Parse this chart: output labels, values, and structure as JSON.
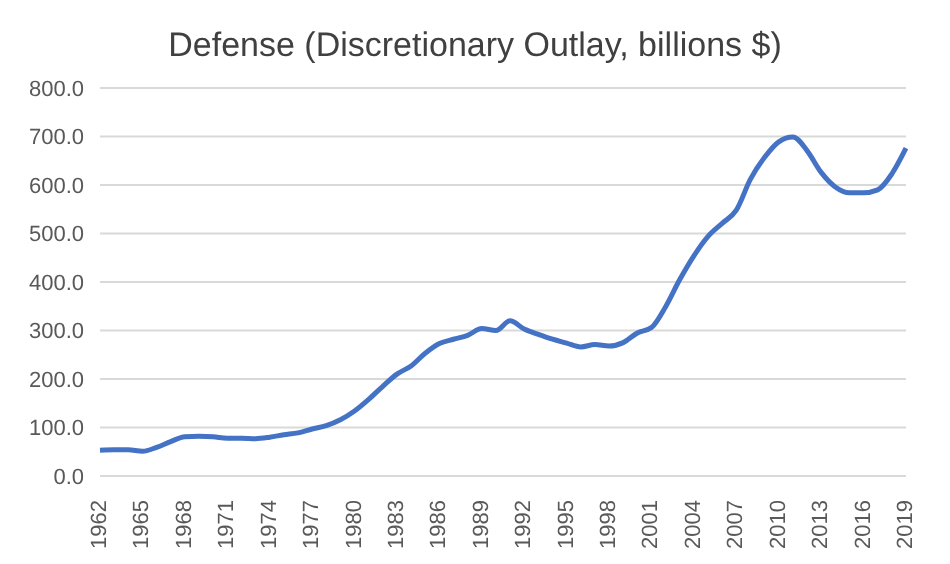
{
  "chart_data": {
    "type": "line",
    "title": "Defense (Discretionary Outlay, billions $)",
    "categories": [
      "1962",
      null,
      null,
      "1965",
      null,
      null,
      "1968",
      null,
      null,
      "1971",
      null,
      null,
      "1974",
      null,
      null,
      "1977",
      null,
      null,
      "1980",
      null,
      null,
      "1983",
      null,
      null,
      "1986",
      null,
      null,
      "1989",
      null,
      null,
      "1992",
      null,
      null,
      "1995",
      null,
      null,
      "1998",
      null,
      null,
      "2001",
      null,
      null,
      "2004",
      null,
      null,
      "2007",
      null,
      null,
      "2010",
      null,
      null,
      "2013",
      null,
      null,
      "2016",
      null,
      null,
      "2019"
    ],
    "series": [
      {
        "color": "#4472c4",
        "values": [
          53,
          54,
          54,
          51,
          59,
          71,
          81,
          82,
          81,
          78,
          78,
          77,
          80,
          85,
          89,
          97,
          104,
          116,
          134,
          158,
          185,
          210,
          227,
          253,
          273,
          282,
          290,
          304,
          300,
          320,
          303,
          292,
          282,
          274,
          266,
          271,
          268,
          275,
          295,
          306,
          349,
          405,
          454,
          494,
          521,
          548,
          612,
          657,
          689,
          699,
          671,
          626,
          596,
          584,
          584,
          590,
          623,
          676
        ]
      }
    ],
    "ylim": [
      0,
      800
    ],
    "yticks": [
      {
        "value": 0,
        "label": "0.0"
      },
      {
        "value": 100,
        "label": "100.0"
      },
      {
        "value": 200,
        "label": "200.0"
      },
      {
        "value": 300,
        "label": "300.0"
      },
      {
        "value": 400,
        "label": "400.0"
      },
      {
        "value": 500,
        "label": "500.0"
      },
      {
        "value": 600,
        "label": "600.0"
      },
      {
        "value": 700,
        "label": "700.0"
      },
      {
        "value": 800,
        "label": "800.0"
      }
    ],
    "grid": "y",
    "legend": false,
    "marker": "none",
    "line_style": "solid"
  }
}
